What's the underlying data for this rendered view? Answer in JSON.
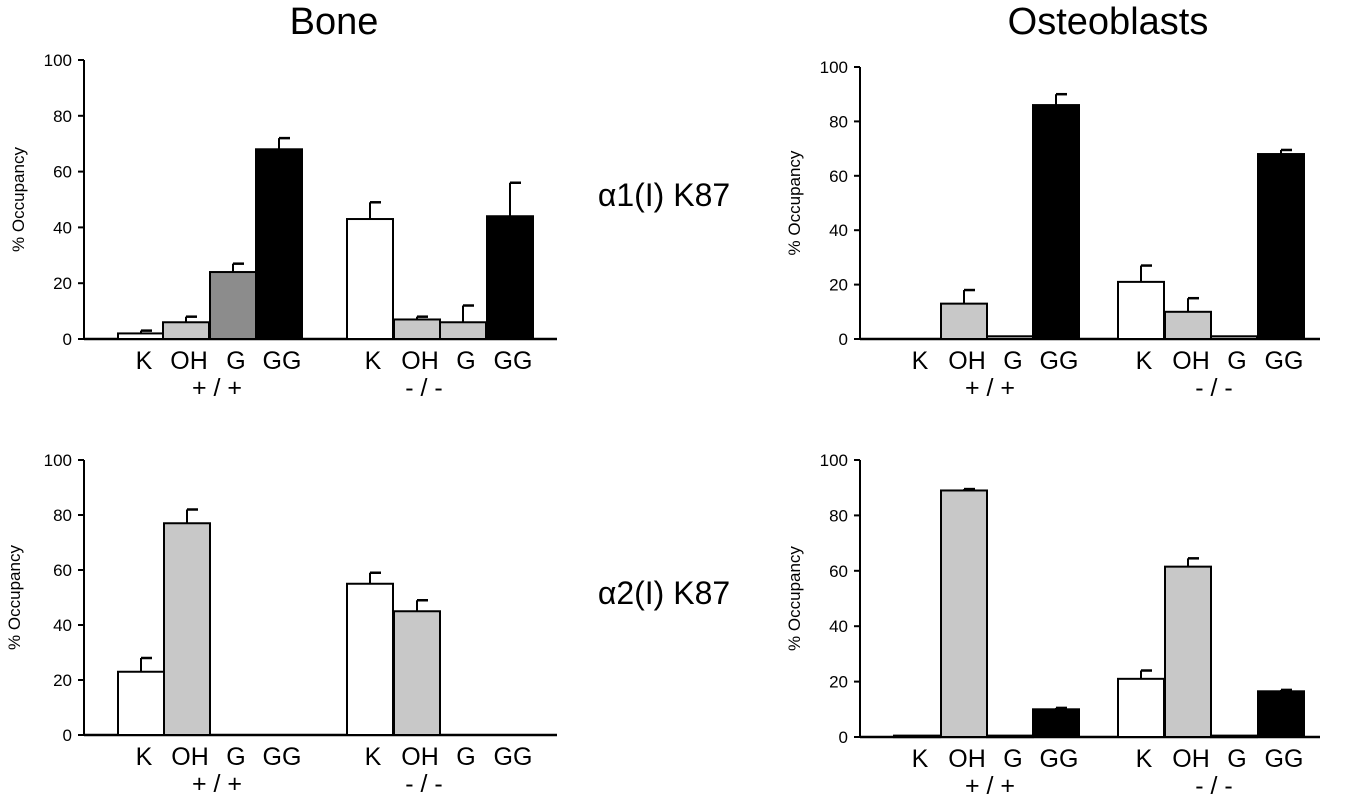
{
  "figure": {
    "column_titles": [
      "Bone",
      "Osteoblasts"
    ],
    "row_labels": [
      "α1(I) K87",
      "α2(I) K87"
    ],
    "group_labels": [
      "+ / +",
      "- / -"
    ],
    "colors": {
      "K": "#ffffff",
      "OH": "#c8c8c8",
      "G": "#8c8c8c",
      "G_light": "#c8c8c8",
      "GG": "#000000"
    }
  },
  "chart_data": [
    {
      "type": "bar",
      "panel": "bone-a1",
      "ylabel": "% Occupancy",
      "ylim": [
        0,
        100
      ],
      "yticks": [
        0,
        20,
        40,
        60,
        80,
        100
      ],
      "categories": [
        "K",
        "OH",
        "G",
        "GG"
      ],
      "groups": [
        "+ / +",
        "- / -"
      ],
      "series": [
        {
          "values": [
            2,
            6,
            24,
            68
          ],
          "errors": [
            1,
            2,
            3,
            4
          ]
        },
        {
          "values": [
            43,
            7,
            6,
            44
          ],
          "errors": [
            6,
            1,
            6,
            12
          ]
        }
      ]
    },
    {
      "type": "bar",
      "panel": "osteoblasts-a1",
      "ylabel": "% Occupancy",
      "ylim": [
        0,
        100
      ],
      "yticks": [
        0,
        20,
        40,
        60,
        80,
        100
      ],
      "categories": [
        "K",
        "OH",
        "G",
        "GG"
      ],
      "groups": [
        "+ / +",
        "- / -"
      ],
      "series": [
        {
          "values": [
            0,
            13,
            1,
            86
          ],
          "errors": [
            0,
            5,
            0,
            4
          ]
        },
        {
          "values": [
            21,
            10,
            1,
            68
          ],
          "errors": [
            6,
            5,
            0,
            1.5
          ]
        }
      ]
    },
    {
      "type": "bar",
      "panel": "bone-a2",
      "ylabel": "% Occupancy",
      "ylim": [
        0,
        100
      ],
      "yticks": [
        0,
        20,
        40,
        60,
        80,
        100
      ],
      "categories": [
        "K",
        "OH",
        "G",
        "GG"
      ],
      "groups": [
        "+ / +",
        "- / -"
      ],
      "series": [
        {
          "values": [
            23,
            77,
            0,
            0
          ],
          "errors": [
            5,
            5,
            0,
            0
          ]
        },
        {
          "values": [
            55,
            45,
            0,
            0
          ],
          "errors": [
            4,
            4,
            0,
            0
          ]
        }
      ]
    },
    {
      "type": "bar",
      "panel": "osteoblasts-a2",
      "ylabel": "% Occupancy",
      "ylim": [
        0,
        100
      ],
      "yticks": [
        0,
        20,
        40,
        60,
        80,
        100
      ],
      "categories": [
        "K",
        "OH",
        "G",
        "GG"
      ],
      "groups": [
        "+ / +",
        "- / -"
      ],
      "series": [
        {
          "values": [
            0.5,
            89,
            0.5,
            10
          ],
          "errors": [
            0,
            0.5,
            0,
            0.5
          ]
        },
        {
          "values": [
            21,
            61.5,
            0.5,
            16.5
          ],
          "errors": [
            3,
            3,
            0,
            0.5
          ]
        }
      ]
    }
  ]
}
